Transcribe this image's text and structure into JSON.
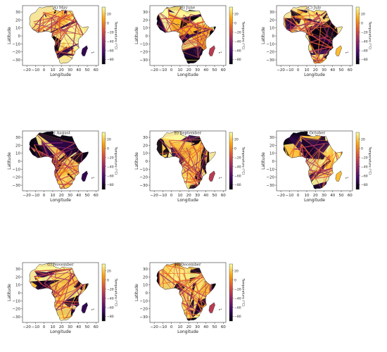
{
  "panels": [
    {
      "title": "A) May"
    },
    {
      "title": "B) June"
    },
    {
      "title": "C) July"
    },
    {
      "title": "D) August"
    },
    {
      "title": "E) September"
    },
    {
      "title": "F) October"
    },
    {
      "title": "G) November"
    },
    {
      "title": "H) December"
    }
  ],
  "axes": {
    "xlabel": "Longitude",
    "ylabel": "Latitude",
    "x_ticks": [
      "−20",
      "−10",
      "0",
      "10",
      "20",
      "30",
      "40",
      "50",
      "60"
    ],
    "y_ticks": [
      "30",
      "20",
      "10",
      "0",
      "−10",
      "−20",
      "−30"
    ],
    "x_range": [
      -25,
      63
    ],
    "y_range": [
      -37,
      38
    ]
  },
  "colorbar": {
    "label": "Temperature (°C)",
    "ticks": [
      "20",
      "0",
      "−20",
      "−40",
      "−60",
      "−80"
    ],
    "tick_values": [
      20,
      0,
      -20,
      -40,
      -60,
      -80
    ],
    "range": [
      -90,
      35
    ],
    "colormap": "inferno",
    "colors": [
      "#000004",
      "#420a68",
      "#932667",
      "#dd513a",
      "#fca50a",
      "#fcffa4"
    ]
  }
}
